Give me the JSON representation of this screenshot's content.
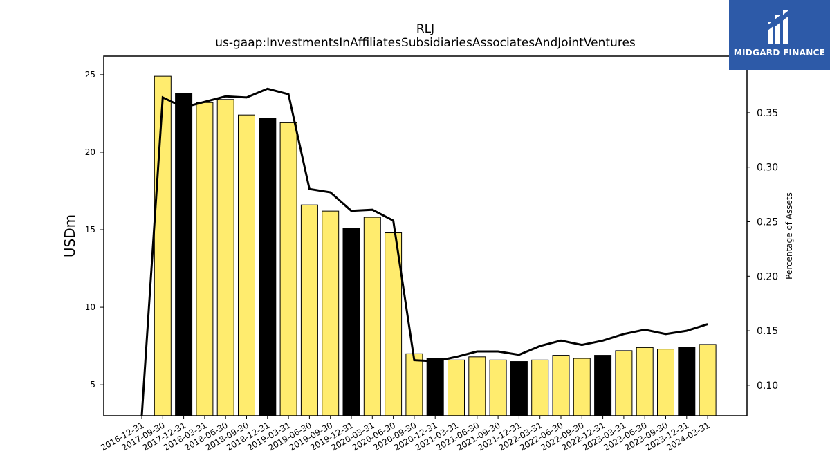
{
  "chart_data": {
    "type": "bar",
    "title": "RLJ",
    "subtitle": "us-gaap:InvestmentsInAffiliatesSubsidiariesAssociatesAndJointVentures",
    "ylabel": "USDm",
    "y2label": "Percentage of Assets",
    "categories": [
      "2016-12-31",
      "2017-09-30",
      "2017-12-31",
      "2018-03-31",
      "2018-06-30",
      "2018-09-30",
      "2018-12-31",
      "2019-03-31",
      "2019-06-30",
      "2019-09-30",
      "2019-12-31",
      "2020-03-31",
      "2020-06-30",
      "2020-09-30",
      "2020-12-31",
      "2021-03-31",
      "2021-06-30",
      "2021-09-30",
      "2021-12-31",
      "2022-03-31",
      "2022-06-30",
      "2022-09-30",
      "2022-12-31",
      "2023-03-31",
      "2023-06-30",
      "2023-09-30",
      "2023-12-31",
      "2024-03-31"
    ],
    "series": [
      {
        "values": [
          null,
          24.9,
          23.8,
          23.2,
          23.4,
          22.4,
          22.2,
          21.9,
          16.6,
          16.2,
          15.1,
          15.8,
          14.8,
          7.0,
          6.7,
          6.6,
          6.8,
          6.6,
          6.5,
          6.6,
          6.9,
          6.7,
          6.9,
          7.2,
          7.4,
          7.3,
          7.4,
          7.6
        ],
        "bar_colors": [
          "#ffec6e",
          "#ffec6e",
          "#000000",
          "#ffec6e",
          "#ffec6e",
          "#ffec6e",
          "#000000",
          "#ffec6e",
          "#ffec6e",
          "#ffec6e",
          "#000000",
          "#ffec6e",
          "#ffec6e",
          "#ffec6e",
          "#000000",
          "#ffec6e",
          "#ffec6e",
          "#ffec6e",
          "#000000",
          "#ffec6e",
          "#ffec6e",
          "#ffec6e",
          "#000000",
          "#ffec6e",
          "#ffec6e",
          "#ffec6e",
          "#000000",
          "#ffec6e"
        ]
      },
      {
        "axis": "right",
        "type": "line",
        "values": [
          0.0,
          0.364,
          0.355,
          0.36,
          0.365,
          0.364,
          0.372,
          0.367,
          0.28,
          0.277,
          0.26,
          0.261,
          0.251,
          0.123,
          0.122,
          0.126,
          0.131,
          0.131,
          0.128,
          0.136,
          0.141,
          0.137,
          0.141,
          0.147,
          0.151,
          0.147,
          0.15,
          0.156
        ]
      }
    ],
    "ylim": [
      3,
      26.2
    ],
    "y2lim": [
      0.072,
      0.402
    ],
    "yticks": [
      5,
      10,
      15,
      20,
      25
    ],
    "y2ticks": [
      "0.10",
      "0.15",
      "0.20",
      "0.25",
      "0.30",
      "0.35"
    ],
    "grid": false,
    "legend": "none",
    "colors": {
      "bar": "#ffec6e",
      "bar_highlight": "#000000",
      "line": "#000000"
    }
  },
  "logo": {
    "text": "MIDGARD FINANCE",
    "background": "#2d5aa8"
  }
}
